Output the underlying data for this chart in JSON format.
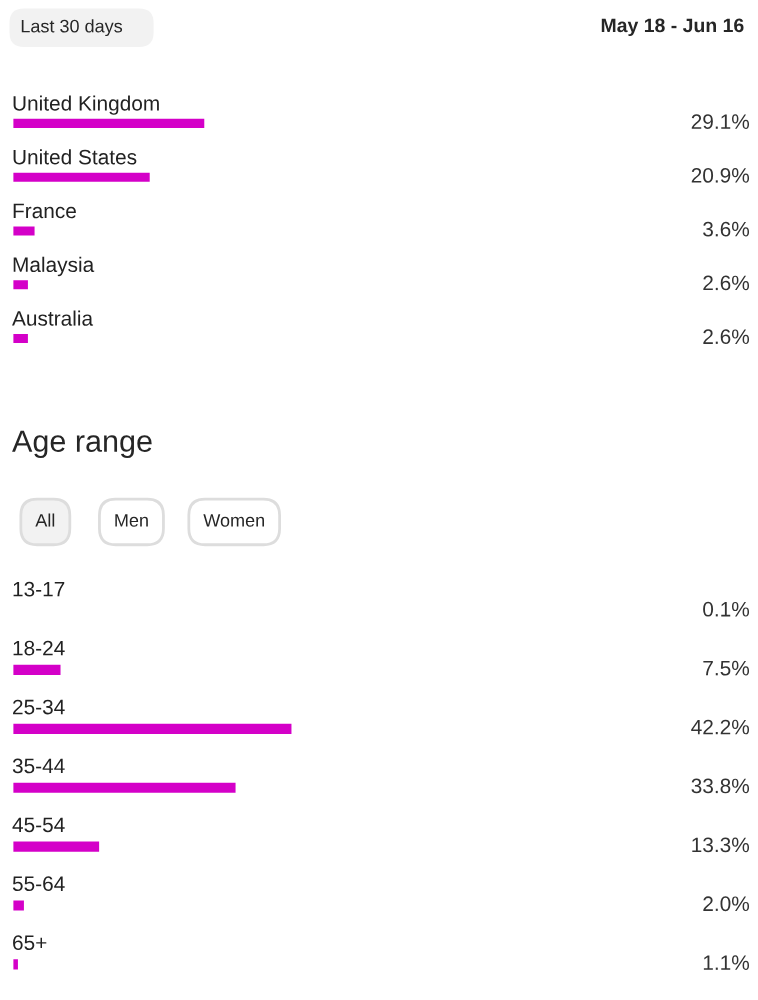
{
  "chart_data": [
    {
      "type": "bar",
      "orientation": "horizontal",
      "categories": [
        "United Kingdom",
        "United States",
        "France",
        "Malaysia",
        "Australia"
      ],
      "values": [
        29.1,
        20.9,
        3.6,
        2.6,
        2.6
      ],
      "value_labels": [
        "29.1%",
        "20.9%",
        "3.6%",
        "2.6%",
        "2.6%"
      ],
      "color": "#d400c8",
      "tick_labels": false,
      "annotations": [
        "Last 30 days",
        "May 18 - Jun 16"
      ]
    },
    {
      "type": "bar",
      "orientation": "horizontal",
      "title": "Age range",
      "categories": [
        "13-17",
        "18-24",
        "25-34",
        "35-44",
        "45-54",
        "55-64",
        "65+"
      ],
      "values": [
        0.1,
        7.5,
        42.2,
        33.8,
        13.3,
        2.0,
        1.1
      ],
      "value_labels": [
        "0.1%",
        "7.5%",
        "42.2%",
        "33.8%",
        "13.3%",
        "2.0%",
        "1.1%"
      ],
      "color": "#d400c8",
      "tick_labels": false,
      "annotations": [
        "All",
        "Men",
        "Women"
      ]
    }
  ]
}
